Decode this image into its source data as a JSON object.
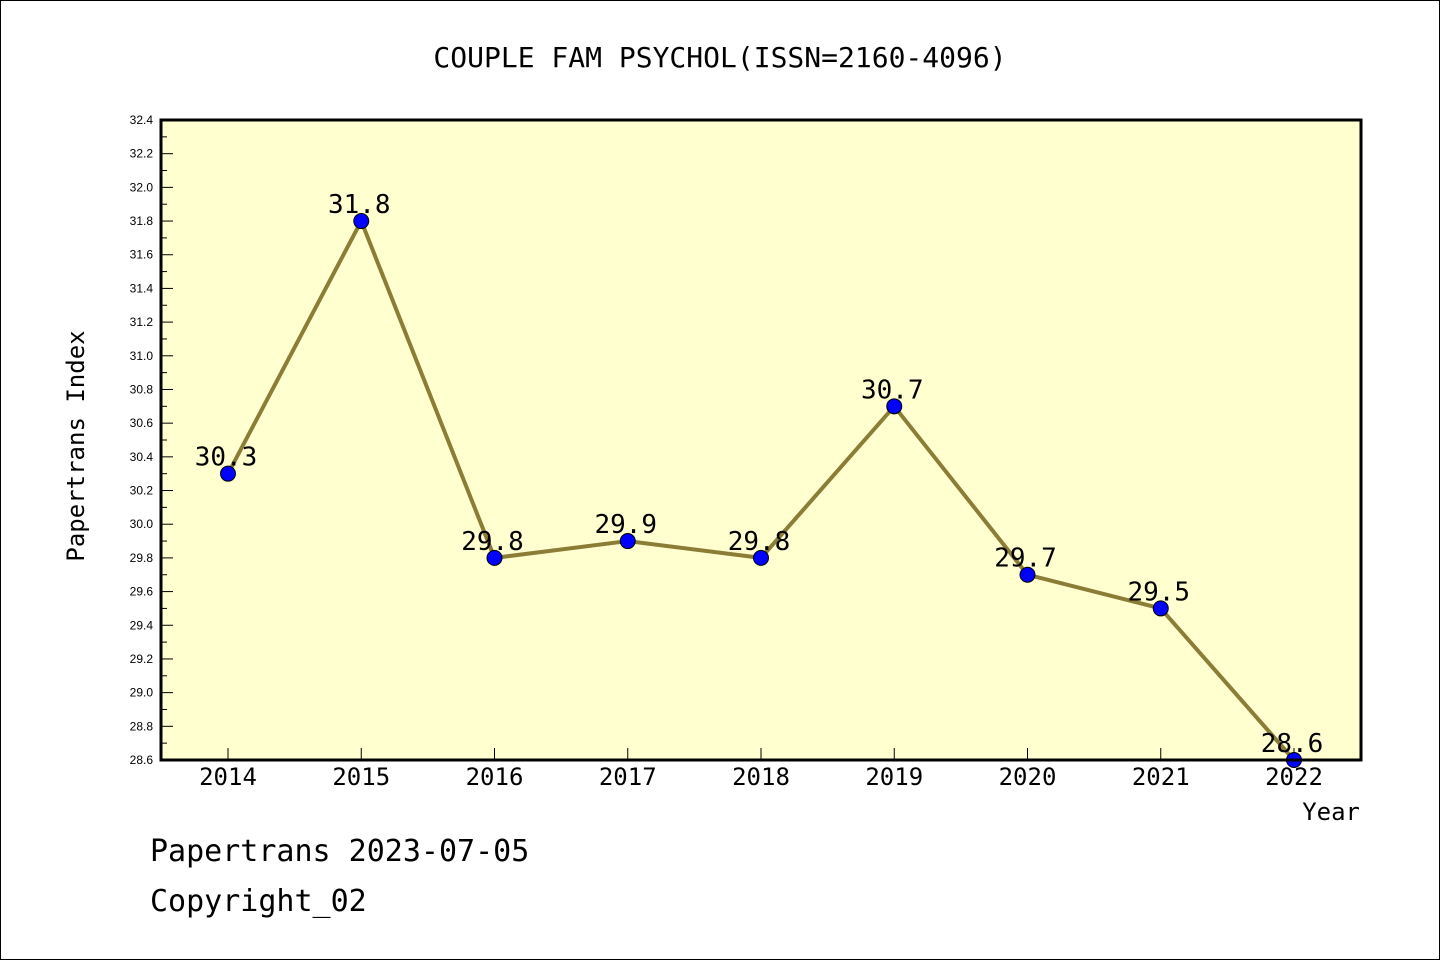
{
  "chart_data": {
    "type": "line",
    "title": "COUPLE FAM PSYCHOL(ISSN=2160-4096)",
    "xlabel": "Year",
    "ylabel": "Papertrans Index",
    "categories": [
      "2014",
      "2015",
      "2016",
      "2017",
      "2018",
      "2019",
      "2020",
      "2021",
      "2022"
    ],
    "series": [
      {
        "values": [
          30.3,
          31.8,
          29.8,
          29.9,
          29.8,
          30.7,
          29.7,
          29.5,
          28.6
        ]
      }
    ],
    "data_labels": [
      "30.3",
      "31.8",
      "29.8",
      "29.9",
      "29.8",
      "30.7",
      "29.7",
      "29.5",
      "28.6"
    ],
    "ylim": [
      28.6,
      32.4
    ],
    "yticks": [
      "28.6",
      "28.8",
      "29.0",
      "29.2",
      "29.4",
      "29.6",
      "29.8",
      "30.0",
      "30.2",
      "30.4",
      "30.6",
      "30.8",
      "31.0",
      "31.2",
      "31.4",
      "31.6",
      "31.8",
      "32.0",
      "32.2",
      "32.4"
    ],
    "grid": false,
    "colors": {
      "plot_background": "#ffffd0",
      "line": "#8b7d35",
      "marker": "#0000ff"
    }
  },
  "footer": {
    "line1": "Papertrans 2023-07-05",
    "line2": "Copyright_02"
  }
}
